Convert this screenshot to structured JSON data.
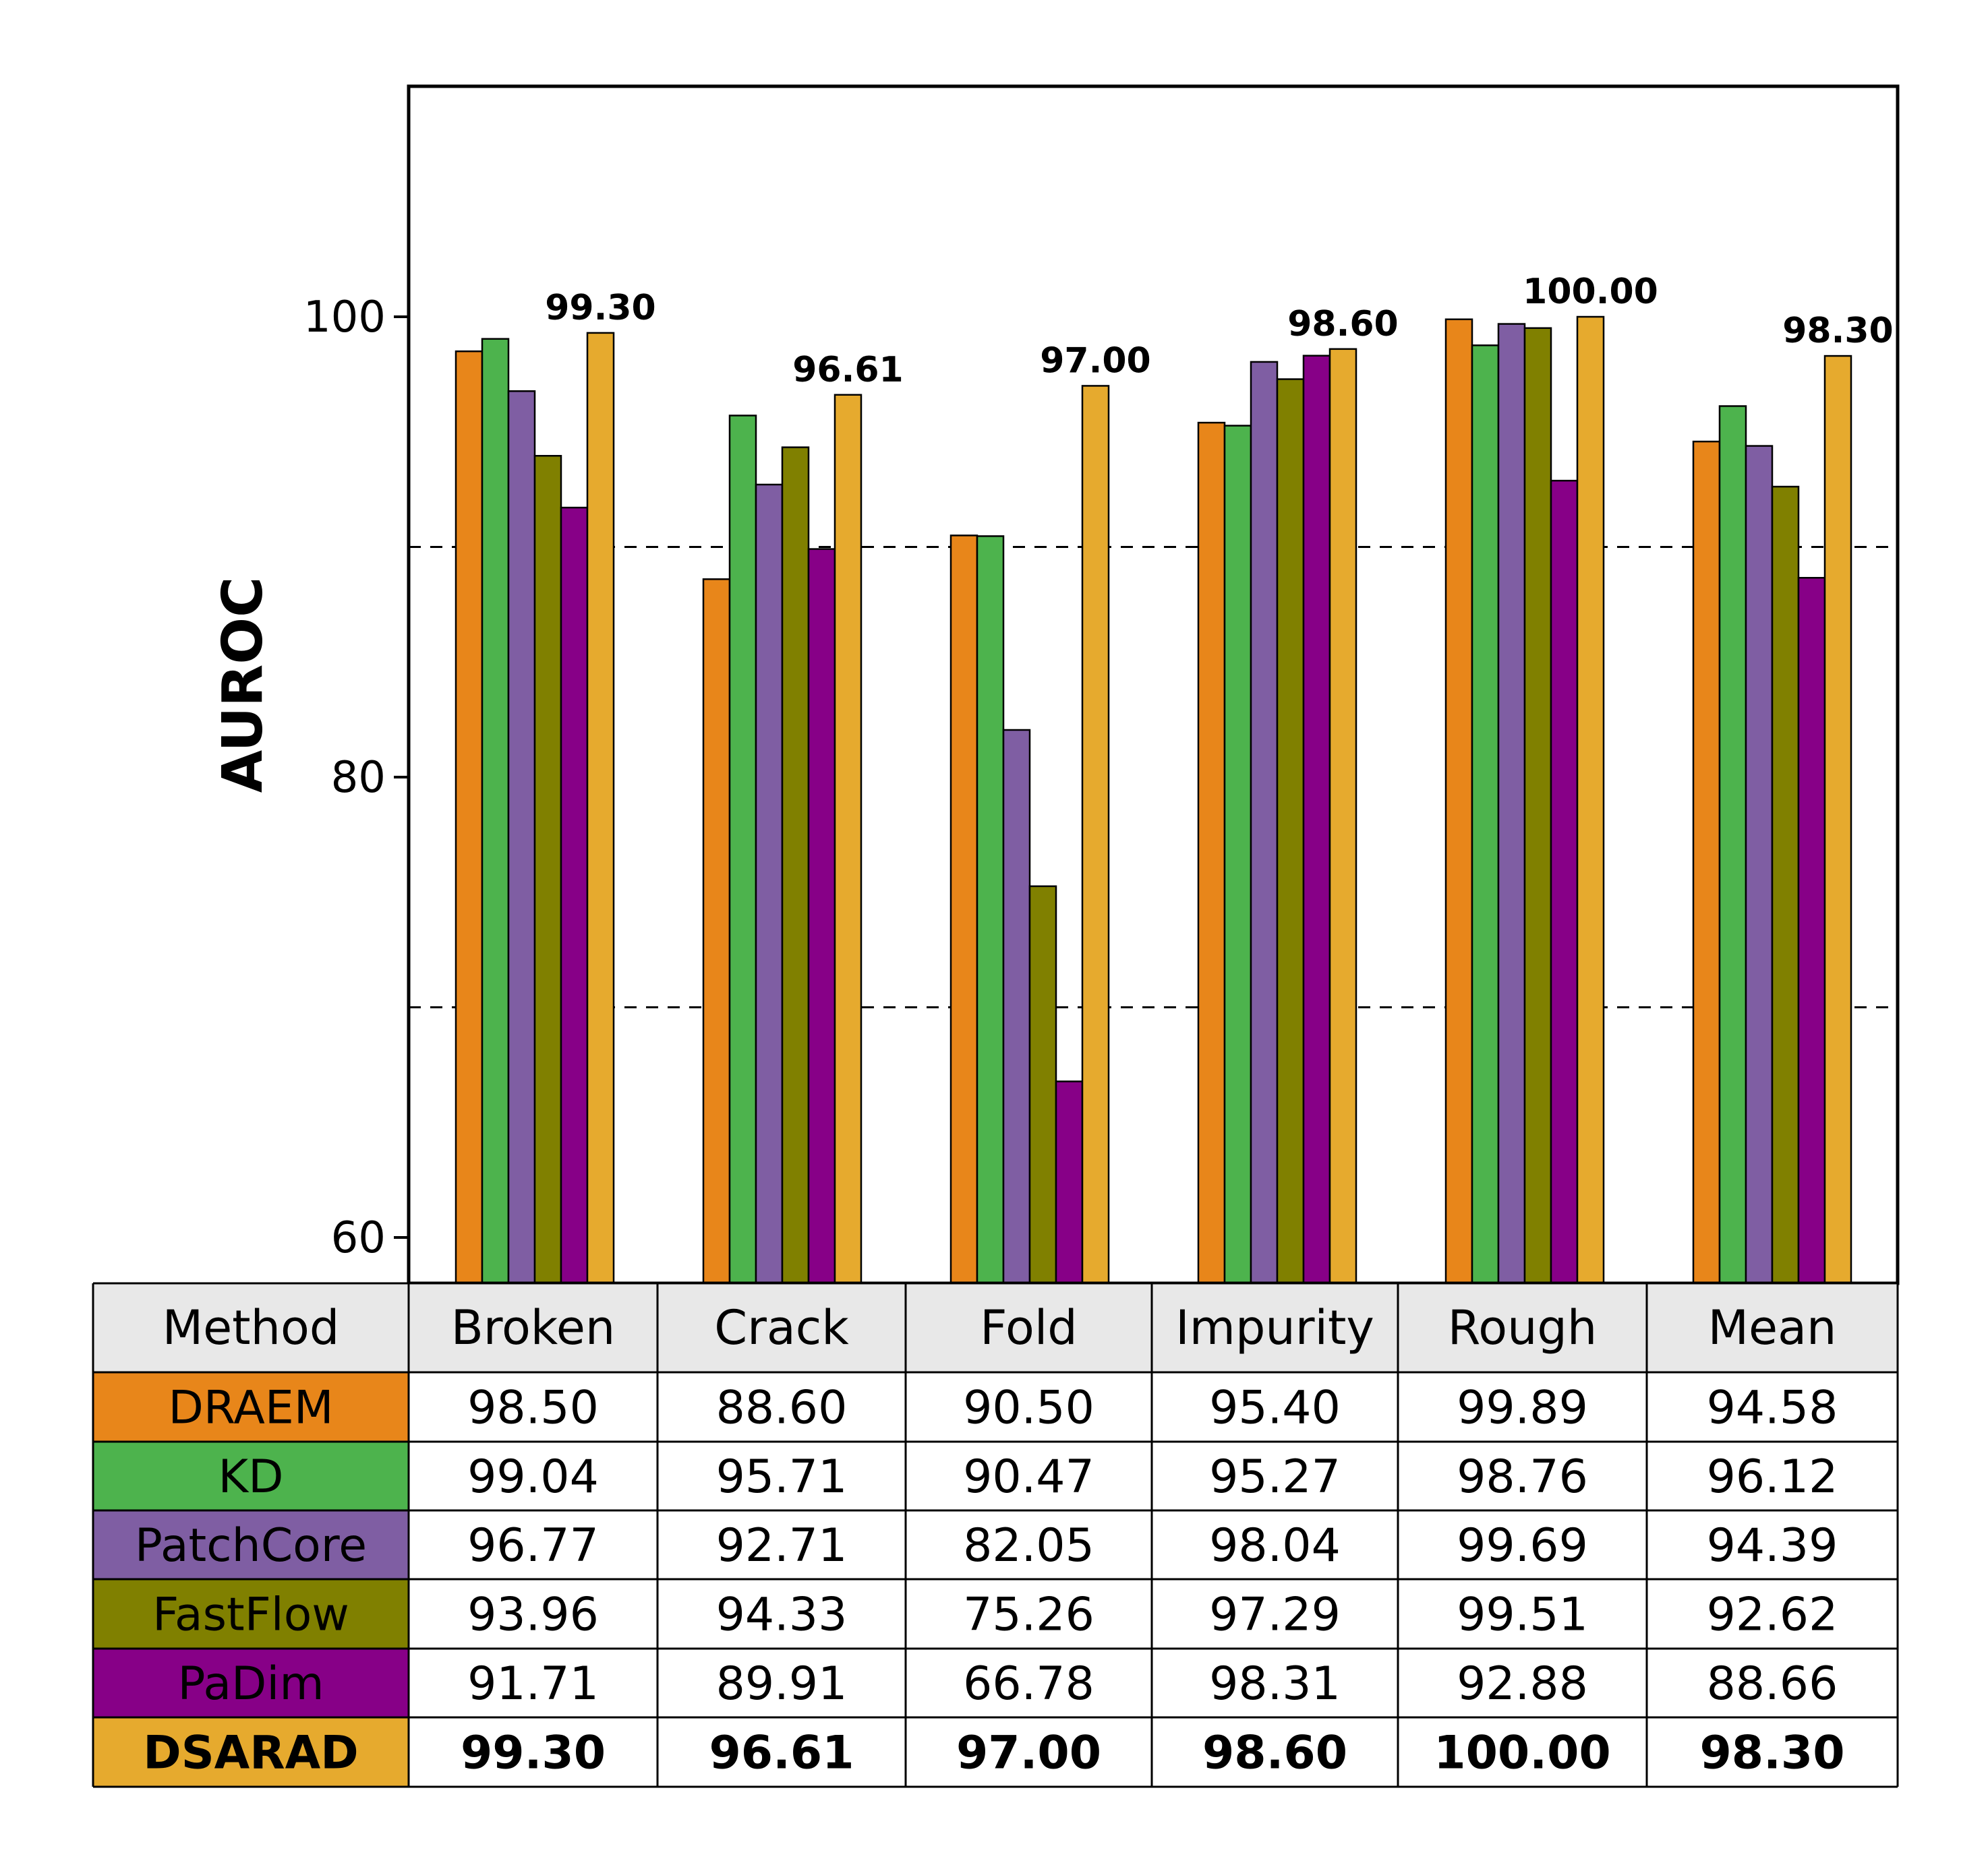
{
  "chart_data": {
    "type": "bar",
    "ylabel": "AUROC",
    "ylim": [
      58,
      110
    ],
    "yticks": [
      60,
      80,
      100
    ],
    "grid": "dashed-horizontal",
    "categories": [
      "Broken",
      "Crack",
      "Fold",
      "Impurity",
      "Rough",
      "Mean"
    ],
    "series": [
      {
        "name": "DRAEM",
        "color": "#e8861a",
        "values": [
          98.5,
          88.6,
          90.5,
          95.4,
          99.89,
          94.58
        ]
      },
      {
        "name": "KD",
        "color": "#4db34d",
        "values": [
          99.04,
          95.71,
          90.47,
          95.27,
          98.76,
          96.12
        ]
      },
      {
        "name": "PatchCore",
        "color": "#7f5ea3",
        "values": [
          96.77,
          92.71,
          82.05,
          98.04,
          99.69,
          94.39
        ]
      },
      {
        "name": "FastFlow",
        "color": "#808000",
        "values": [
          93.96,
          94.33,
          75.26,
          97.29,
          99.51,
          92.62
        ]
      },
      {
        "name": "PaDim",
        "color": "#870087",
        "values": [
          91.71,
          89.91,
          66.78,
          98.31,
          92.88,
          88.66
        ]
      },
      {
        "name": "DSARAD",
        "color": "#e6aa2e",
        "values": [
          99.3,
          96.61,
          97.0,
          98.6,
          100.0,
          98.3
        ]
      }
    ],
    "annotations": [
      "99.30",
      "96.61",
      "97.00",
      "98.60",
      "100.00",
      "98.30"
    ],
    "table": {
      "header": [
        "Method",
        "Broken",
        "Crack",
        "Fold",
        "Impurity",
        "Rough",
        "Mean"
      ],
      "rows": [
        [
          "DRAEM",
          "98.50",
          "88.60",
          "90.50",
          "95.40",
          "99.89",
          "94.58"
        ],
        [
          "KD",
          "99.04",
          "95.71",
          "90.47",
          "95.27",
          "98.76",
          "96.12"
        ],
        [
          "PatchCore",
          "96.77",
          "92.71",
          "82.05",
          "98.04",
          "99.69",
          "94.39"
        ],
        [
          "FastFlow",
          "93.96",
          "94.33",
          "75.26",
          "97.29",
          "99.51",
          "92.62"
        ],
        [
          "PaDim",
          "91.71",
          "89.91",
          "66.78",
          "98.31",
          "92.88",
          "88.66"
        ],
        [
          "DSARAD",
          "99.30",
          "96.61",
          "97.00",
          "98.60",
          "100.00",
          "98.30"
        ]
      ]
    }
  }
}
